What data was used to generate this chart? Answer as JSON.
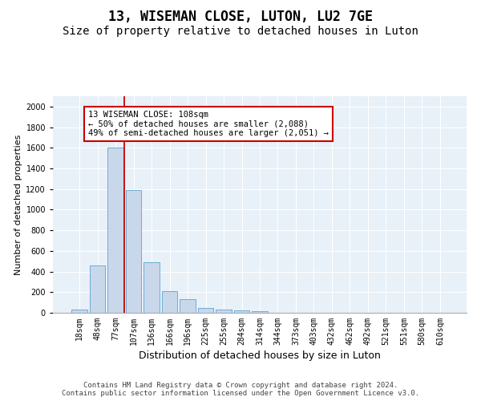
{
  "title": "13, WISEMAN CLOSE, LUTON, LU2 7GE",
  "subtitle": "Size of property relative to detached houses in Luton",
  "xlabel": "Distribution of detached houses by size in Luton",
  "ylabel": "Number of detached properties",
  "categories": [
    "18sqm",
    "48sqm",
    "77sqm",
    "107sqm",
    "136sqm",
    "166sqm",
    "196sqm",
    "225sqm",
    "255sqm",
    "284sqm",
    "314sqm",
    "344sqm",
    "373sqm",
    "403sqm",
    "432sqm",
    "462sqm",
    "492sqm",
    "521sqm",
    "551sqm",
    "580sqm",
    "610sqm"
  ],
  "values": [
    35,
    460,
    1600,
    1190,
    490,
    210,
    130,
    48,
    28,
    20,
    15,
    0,
    0,
    0,
    0,
    0,
    0,
    0,
    0,
    0,
    0
  ],
  "bar_color": "#c8d8ea",
  "bar_edge_color": "#6baed6",
  "marker_line_color": "#cc0000",
  "annotation_text": "13 WISEMAN CLOSE: 108sqm\n← 50% of detached houses are smaller (2,088)\n49% of semi-detached houses are larger (2,051) →",
  "annotation_box_color": "#ffffff",
  "annotation_box_edge_color": "#cc0000",
  "ylim": [
    0,
    2100
  ],
  "yticks": [
    0,
    200,
    400,
    600,
    800,
    1000,
    1200,
    1400,
    1600,
    1800,
    2000
  ],
  "bg_color": "#e8f0f8",
  "footer_text": "Contains HM Land Registry data © Crown copyright and database right 2024.\nContains public sector information licensed under the Open Government Licence v3.0.",
  "title_fontsize": 12,
  "subtitle_fontsize": 10,
  "xlabel_fontsize": 9,
  "ylabel_fontsize": 8,
  "tick_fontsize": 7,
  "footer_fontsize": 6.5,
  "annotation_fontsize": 7.5
}
